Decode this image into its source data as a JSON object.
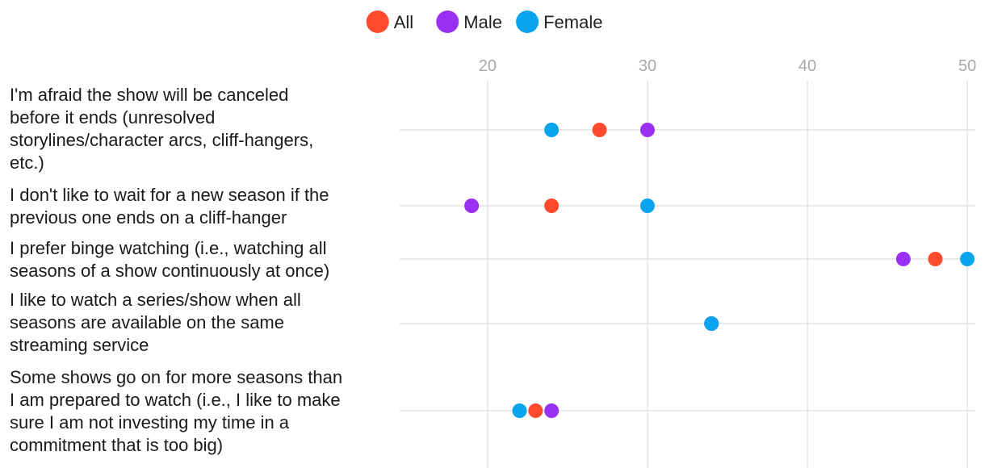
{
  "chart_data": {
    "type": "dot",
    "title": "",
    "xlabel": "",
    "ylabel": "",
    "xlim": [
      14.5,
      50.5
    ],
    "xticks": [
      20,
      30,
      40,
      50
    ],
    "grid": true,
    "legend_position": "top-center",
    "series": [
      {
        "name": "All",
        "color": "#ff4a2e",
        "values": [
          27,
          24,
          48,
          34,
          23
        ]
      },
      {
        "name": "Male",
        "color": "#9b30f5",
        "values": [
          30,
          19,
          46,
          34,
          24
        ]
      },
      {
        "name": "Female",
        "color": "#08a4ee",
        "values": [
          24,
          30,
          50,
          34,
          22
        ]
      }
    ],
    "categories": [
      {
        "label": "I'm afraid the show will be canceled before it ends (unresolved storylines/character arcs, cliff-hangers, etc.)",
        "lines": [
          "I'm afraid the show will be canceled",
          "before it ends (unresolved",
          "storylines/character arcs, cliff-hangers,",
          "etc.)"
        ]
      },
      {
        "label": "I don't like to wait for a new season if the previous one ends on a cliff-hanger",
        "lines": [
          "I don't like to wait for a new season if the",
          "previous one ends on a cliff-hanger"
        ]
      },
      {
        "label": "I prefer binge watching (i.e., watching all seasons of a show continuously at once)",
        "lines": [
          "I prefer binge watching (i.e., watching all",
          "seasons of a show continuously at once)"
        ]
      },
      {
        "label": "I like to watch a series/show when all seasons are available on the same streaming service",
        "lines": [
          "I like to watch a series/show when all",
          "seasons are available on the same",
          "streaming service"
        ]
      },
      {
        "label": "Some shows go on for more seasons than I am prepared to watch (i.e., I like to make sure I am not investing my time in a commitment that is too big)",
        "lines": [
          "Some shows go on for more seasons than",
          "I am prepared to watch (i.e., I like to make",
          "sure I am not investing my time in a",
          "commitment that is too big)"
        ]
      }
    ]
  }
}
